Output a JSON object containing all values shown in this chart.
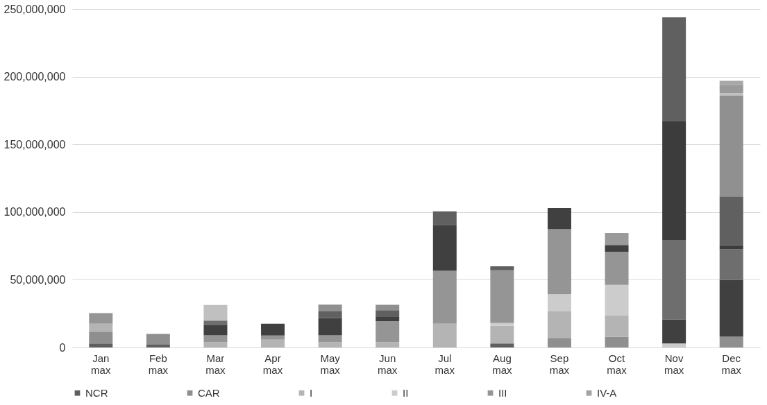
{
  "chart_data": {
    "type": "bar",
    "stacked": true,
    "categories": [
      "Jan max",
      "Feb max",
      "Mar max",
      "Apr max",
      "May max",
      "Jun max",
      "Jul max",
      "Aug max",
      "Sep max",
      "Oct max",
      "Nov max",
      "Dec max"
    ],
    "series": [
      {
        "name": "NCR",
        "color": "#5f5f5f",
        "values": [
          3000000,
          2000000,
          null,
          null,
          null,
          null,
          null,
          3000000,
          null,
          null,
          null,
          null
        ]
      },
      {
        "name": "CAR",
        "color": "#8f8f8f",
        "values": [
          8700000,
          8000000,
          null,
          null,
          null,
          null,
          null,
          null,
          7000000,
          8000000,
          null,
          8000000
        ]
      },
      {
        "name": "I",
        "color": "#b4b4b4",
        "values": [
          5800000,
          null,
          4000000,
          5800000,
          4000000,
          4000000,
          17600000,
          13000000,
          19600000,
          15700000,
          null,
          null
        ]
      },
      {
        "name": "II",
        "color": "#cccccc",
        "values": [
          null,
          null,
          null,
          null,
          null,
          null,
          null,
          2000000,
          12700000,
          22500000,
          3000000,
          null
        ]
      },
      {
        "name": "III",
        "color": "#959595",
        "values": [
          7800000,
          null,
          5000000,
          3000000,
          5000000,
          15500000,
          39000000,
          39000000,
          48000000,
          24500000,
          null,
          null
        ]
      },
      {
        "name": "IV-A",
        "color": "#a3a3a3",
        "values": [
          null,
          null,
          null,
          null,
          null,
          null,
          null,
          null,
          null,
          null,
          null,
          null
        ]
      },
      {
        "color": "#404040",
        "values": [
          null,
          null,
          7800000,
          8700000,
          12600000,
          3000000,
          34000000,
          null,
          15700000,
          5000000,
          17600000,
          42000000
        ]
      },
      {
        "color": "#6e6e6e",
        "values": [
          null,
          null,
          3000000,
          null,
          null,
          null,
          null,
          null,
          null,
          null,
          58800000,
          22500000
        ]
      },
      {
        "color": "#3c3c3c",
        "values": [
          null,
          null,
          null,
          null,
          null,
          null,
          null,
          null,
          null,
          null,
          88000000,
          3000000
        ]
      },
      {
        "color": "#606060",
        "values": [
          null,
          null,
          null,
          null,
          5000000,
          5000000,
          10000000,
          3000000,
          null,
          null,
          76500000,
          36000000
        ]
      },
      {
        "color": "#909090",
        "values": [
          null,
          null,
          null,
          null,
          5000000,
          4000000,
          null,
          null,
          null,
          null,
          null,
          74500000
        ]
      },
      {
        "color": "#c0c0c0",
        "values": [
          null,
          null,
          11600000,
          null,
          null,
          null,
          null,
          null,
          null,
          null,
          null,
          2000000
        ]
      },
      {
        "color": "#9a9a9a",
        "values": [
          null,
          null,
          null,
          null,
          null,
          null,
          null,
          null,
          null,
          8800000,
          null,
          6000000
        ]
      },
      {
        "color": "#a8a8a8",
        "values": [
          null,
          null,
          null,
          null,
          null,
          null,
          null,
          null,
          null,
          null,
          null,
          3000000
        ]
      }
    ],
    "ylim": [
      0,
      250000000
    ],
    "yticks": [
      0,
      {
        "value": 50000000,
        "label": "50,000,000"
      },
      {
        "value": 100000000,
        "label": "100,000,000"
      },
      {
        "value": 150000000,
        "label": "150,000,000"
      },
      {
        "value": 200000000,
        "label": "200,000,000"
      },
      {
        "value": 250000000,
        "label": "250,000,000"
      }
    ],
    "grid": "y",
    "legend": "bottom"
  }
}
